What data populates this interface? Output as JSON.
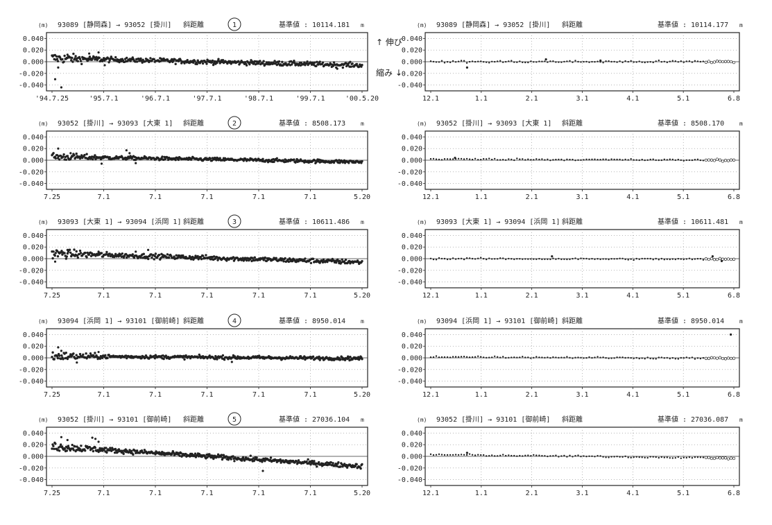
{
  "chart_data": [
    {
      "type": "scatter",
      "number": "1",
      "unit": "(m)",
      "route": "93089 [静岡森] → 93052 [掛川]",
      "kind": "斜距離",
      "baseline_label": "基準値 :",
      "baseline_value": "10114.181",
      "baseline_unit": "m",
      "yticks": [
        "0.040",
        "0.020",
        "0.000",
        "-0.020",
        "-0.040"
      ],
      "ylim": [
        -0.05,
        0.05
      ],
      "xticks": [
        "'94.7.25",
        "'95.7.1",
        "'96.7.1",
        "'97.7.1",
        "'98.7.1",
        "'99.7.1",
        "'00.5.20"
      ],
      "annotations": {
        "up": "↑ 伸び",
        "down": "縮み ↓"
      },
      "trend": [
        0.006,
        -0.006
      ],
      "spread": 0.004,
      "early_spread": 0.009,
      "outliers": [
        [
          0.01,
          -0.03
        ],
        [
          0.03,
          -0.044
        ],
        [
          0.02,
          -0.01
        ],
        [
          0.05,
          0.012
        ],
        [
          0.12,
          0.014
        ],
        [
          0.15,
          0.016
        ],
        [
          0.17,
          -0.006
        ],
        [
          0.92,
          -0.012
        ]
      ],
      "n": 420
    },
    {
      "type": "scatter",
      "number": "2",
      "unit": "(m)",
      "route": "93052 [掛川] → 93093 [大東 1]",
      "kind": "斜距離",
      "baseline_label": "基準値 :",
      "baseline_value": "8508.173",
      "baseline_unit": "m",
      "yticks": [
        "0.040",
        "0.020",
        "0.000",
        "-0.020",
        "-0.040"
      ],
      "ylim": [
        -0.05,
        0.05
      ],
      "xticks": [
        "7.25",
        "7.1",
        "7.1",
        "7.1",
        "7.1",
        "7.1",
        "5.20"
      ],
      "trend": [
        0.006,
        -0.003
      ],
      "spread": 0.003,
      "early_spread": 0.007,
      "outliers": [
        [
          0.02,
          0.02
        ],
        [
          0.06,
          0.012
        ],
        [
          0.16,
          -0.006
        ],
        [
          0.24,
          0.017
        ],
        [
          0.25,
          0.012
        ],
        [
          0.27,
          -0.005
        ]
      ],
      "n": 420
    },
    {
      "type": "scatter",
      "number": "3",
      "unit": "(m)",
      "route": "93093 [大東 1] → 93094 [浜岡 1]",
      "kind": "斜距離",
      "baseline_label": "基準値 :",
      "baseline_value": "10611.486",
      "baseline_unit": "m",
      "yticks": [
        "0.040",
        "0.020",
        "0.000",
        "-0.020",
        "-0.040"
      ],
      "ylim": [
        -0.05,
        0.05
      ],
      "xticks": [
        "7.25",
        "7.1",
        "7.1",
        "7.1",
        "7.1",
        "7.1",
        "5.20"
      ],
      "trend": [
        0.009,
        -0.006
      ],
      "spread": 0.004,
      "early_spread": 0.008,
      "outliers": [
        [
          0.01,
          -0.005
        ],
        [
          0.05,
          0.015
        ],
        [
          0.15,
          0.012
        ],
        [
          0.27,
          0.012
        ],
        [
          0.31,
          0.015
        ]
      ],
      "n": 420
    },
    {
      "type": "scatter",
      "number": "4",
      "unit": "(m)",
      "route": "93094 [浜岡 1] → 93101 [御前崎]",
      "kind": "斜距離",
      "baseline_label": "基準値 :",
      "baseline_value": "8950.014",
      "baseline_unit": "m",
      "yticks": [
        "0.040",
        "0.020",
        "0.000",
        "-0.020",
        "-0.040"
      ],
      "ylim": [
        -0.05,
        0.05
      ],
      "xticks": [
        "7.25",
        "7.1",
        "7.1",
        "7.1",
        "7.1",
        "7.1",
        "5.20"
      ],
      "trend": [
        0.003,
        -0.001
      ],
      "spread": 0.003,
      "early_spread": 0.008,
      "outliers": [
        [
          0.02,
          0.018
        ],
        [
          0.03,
          0.012
        ],
        [
          0.08,
          -0.008
        ],
        [
          0.15,
          0.01
        ],
        [
          0.58,
          -0.007
        ]
      ],
      "n": 420
    },
    {
      "type": "scatter",
      "number": "5",
      "unit": "(m)",
      "route": "93052 [掛川] → 93101 [御前崎]",
      "kind": "斜距離",
      "baseline_label": "基準値 :",
      "baseline_value": "27036.104",
      "baseline_unit": "m",
      "yticks": [
        "0.040",
        "0.020",
        "0.000",
        "-0.020",
        "-0.040"
      ],
      "ylim": [
        -0.05,
        0.05
      ],
      "xticks": [
        "7.25",
        "7.1",
        "7.1",
        "7.1",
        "7.1",
        "7.1",
        "5.20"
      ],
      "trend": [
        0.017,
        -0.017
      ],
      "spread": 0.004,
      "early_spread": 0.008,
      "outliers": [
        [
          0.03,
          0.033
        ],
        [
          0.05,
          0.028
        ],
        [
          0.13,
          0.032
        ],
        [
          0.14,
          0.03
        ],
        [
          0.15,
          0.025
        ],
        [
          0.68,
          -0.025
        ]
      ],
      "n": 460
    },
    {
      "type": "scatter",
      "unit": "(m)",
      "route": "93089 [静岡森] → 93052 [掛川]",
      "kind": "斜距離",
      "baseline_label": "基準値 :",
      "baseline_value": "10114.177",
      "baseline_unit": "m",
      "yticks": [
        "0.040",
        "0.020",
        "0.000",
        "-0.020",
        "-0.040"
      ],
      "ylim": [
        -0.05,
        0.05
      ],
      "xticks": [
        "12.1",
        "1.1",
        "2.1",
        "3.1",
        "4.1",
        "5.1",
        "6.8"
      ],
      "trend": [
        0.0,
        0.0
      ],
      "spread": 0.002,
      "n": 110,
      "open_from": 0.9,
      "outliers": [
        [
          0.12,
          -0.01
        ],
        [
          0.38,
          0.004
        ],
        [
          0.56,
          0.002
        ]
      ]
    },
    {
      "type": "scatter",
      "unit": "(m)",
      "route": "93052 [掛川] → 93093 [大東 1]",
      "kind": "斜距離",
      "baseline_label": "基準値 :",
      "baseline_value": "8508.170",
      "baseline_unit": "m",
      "yticks": [
        "0.040",
        "0.020",
        "0.000",
        "-0.020",
        "-0.040"
      ],
      "ylim": [
        -0.05,
        0.05
      ],
      "xticks": [
        "12.1",
        "1.1",
        "2.1",
        "3.1",
        "4.1",
        "5.1",
        "6.8"
      ],
      "trend": [
        0.002,
        0.0
      ],
      "spread": 0.0015,
      "n": 110,
      "open_from": 0.9,
      "outliers": [
        [
          0.08,
          0.004
        ]
      ]
    },
    {
      "type": "scatter",
      "unit": "(m)",
      "route": "93093 [大東 1] → 93094 [浜岡 1]",
      "kind": "斜距離",
      "baseline_label": "基準値 :",
      "baseline_value": "10611.481",
      "baseline_unit": "m",
      "yticks": [
        "0.040",
        "0.020",
        "0.000",
        "-0.020",
        "-0.040"
      ],
      "ylim": [
        -0.05,
        0.05
      ],
      "xticks": [
        "12.1",
        "1.1",
        "2.1",
        "3.1",
        "4.1",
        "5.1",
        "6.8"
      ],
      "trend": [
        0.0,
        -0.001
      ],
      "spread": 0.0015,
      "n": 110,
      "open_from": 0.9,
      "outliers": [
        [
          0.4,
          0.004
        ],
        [
          0.93,
          0.004
        ],
        [
          0.96,
          -0.004
        ]
      ]
    },
    {
      "type": "scatter",
      "unit": "(m)",
      "route": "93094 [浜岡 1] → 93101 [御前崎]",
      "kind": "斜距離",
      "baseline_label": "基準値 :",
      "baseline_value": "8950.014",
      "baseline_unit": "m",
      "yticks": [
        "0.040",
        "0.020",
        "0.000",
        "-0.020",
        "-0.040"
      ],
      "ylim": [
        -0.05,
        0.05
      ],
      "xticks": [
        "12.1",
        "1.1",
        "2.1",
        "3.1",
        "4.1",
        "5.1",
        "6.8"
      ],
      "trend": [
        0.002,
        -0.001
      ],
      "spread": 0.0015,
      "n": 110,
      "open_from": 0.9,
      "outliers": [
        [
          0.99,
          0.04
        ]
      ]
    },
    {
      "type": "scatter",
      "unit": "(m)",
      "route": "93052 [掛川] → 93101 [御前崎]",
      "kind": "斜距離",
      "baseline_label": "基準値 :",
      "baseline_value": "27036.087",
      "baseline_unit": "m",
      "yticks": [
        "0.040",
        "0.020",
        "0.000",
        "-0.020",
        "-0.040"
      ],
      "ylim": [
        -0.05,
        0.05
      ],
      "xticks": [
        "12.1",
        "1.1",
        "2.1",
        "3.1",
        "4.1",
        "5.1",
        "6.8"
      ],
      "trend": [
        0.003,
        -0.003
      ],
      "spread": 0.0015,
      "n": 110,
      "open_from": 0.9,
      "outliers": [
        [
          0.12,
          0.006
        ]
      ]
    }
  ]
}
